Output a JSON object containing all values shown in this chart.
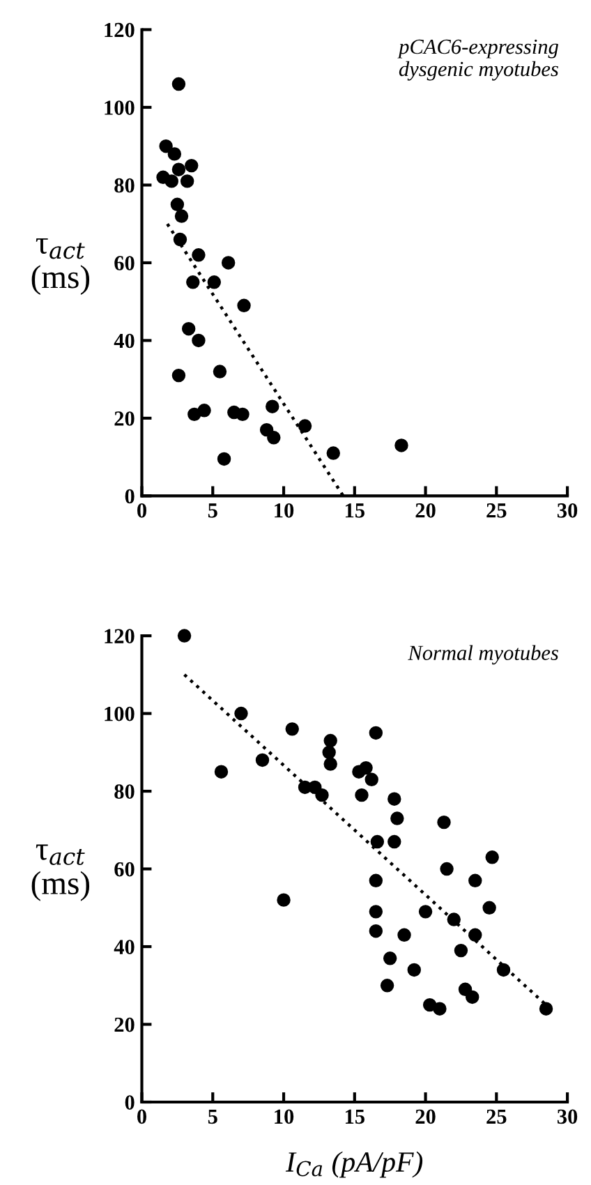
{
  "chart_data": [
    {
      "type": "scatter",
      "ylabel": "τ$_{act}$\n(ms)",
      "annotations": [
        "pCAC6-expressing\ndysgenic myotubes"
      ],
      "xlim": [
        0,
        30
      ],
      "ylim": [
        0,
        120
      ],
      "xticks": [
        0,
        5,
        10,
        15,
        20,
        25,
        30
      ],
      "yticks": [
        0,
        20,
        40,
        60,
        80,
        100,
        120
      ],
      "grid": false,
      "legend": false,
      "marker": "circle",
      "series": [
        {
          "color": "#000000",
          "x": [
            2.6,
            1.7,
            2.3,
            3.5,
            1.5,
            2.1,
            2.6,
            3.2,
            2.5,
            2.8,
            2.7,
            4.0,
            6.1,
            7.2,
            3.6,
            5.1,
            3.3,
            4.0,
            5.5,
            2.6,
            3.7,
            4.4,
            6.5,
            7.1,
            9.2,
            11.5,
            8.8,
            9.3,
            13.5,
            18.3,
            5.8
          ],
          "values": [
            106,
            90,
            88,
            85,
            82,
            81,
            84,
            81,
            75,
            72,
            66,
            62,
            60,
            49,
            55,
            55,
            43,
            40,
            32,
            31,
            21,
            22,
            21.5,
            21,
            23,
            18,
            17,
            15,
            11,
            13,
            9.5
          ]
        },
        {
          "type": "line",
          "line_style": "dotted",
          "marker": "none",
          "color": "#000000",
          "x": [
            1.8,
            14.2
          ],
          "values": [
            70,
            0
          ]
        }
      ]
    },
    {
      "type": "scatter",
      "ylabel": "τ$_{act}$\n(ms)",
      "xlabel": "I$_{Ca}$ (pA/pF)",
      "annotations": [
        "Normal myotubes"
      ],
      "xlim": [
        0,
        30
      ],
      "ylim": [
        0,
        120
      ],
      "xticks": [
        0,
        5,
        10,
        15,
        20,
        25,
        30
      ],
      "yticks": [
        0,
        20,
        40,
        60,
        80,
        100,
        120
      ],
      "grid": false,
      "legend": false,
      "marker": "circle",
      "series": [
        {
          "color": "#000000",
          "x": [
            3,
            5.6,
            7,
            8.5,
            10,
            10.6,
            11.5,
            12.2,
            12.7,
            13.2,
            13.3,
            13.3,
            15.3,
            15.5,
            15.8,
            16.2,
            16.5,
            16.6,
            16.5,
            16.5,
            16.5,
            17.3,
            17.5,
            17.8,
            17.8,
            18,
            18.5,
            19.2,
            20,
            20.3,
            21,
            21.3,
            21.5,
            22,
            22.5,
            22.8,
            23.3,
            23.5,
            23.5,
            24.5,
            24.7,
            25.5,
            28.5
          ],
          "values": [
            120,
            85,
            100,
            88,
            52,
            96,
            81,
            81,
            79,
            90,
            93,
            87,
            85,
            79,
            86,
            83,
            95,
            67,
            57,
            49,
            44,
            30,
            37,
            78,
            67,
            73,
            43,
            34,
            49,
            25,
            24,
            72,
            60,
            47,
            39,
            29,
            27,
            57,
            43,
            50,
            63,
            34,
            24
          ]
        },
        {
          "type": "line",
          "line_style": "dotted",
          "marker": "none",
          "color": "#000000",
          "x": [
            3,
            28.5
          ],
          "values": [
            110,
            25
          ]
        }
      ]
    }
  ]
}
